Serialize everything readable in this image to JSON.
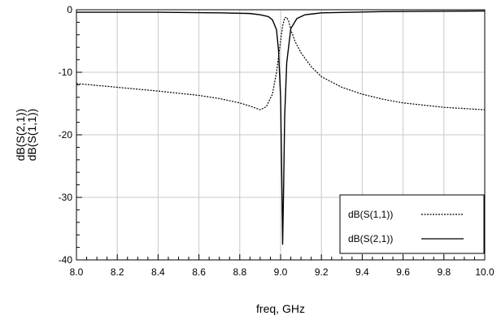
{
  "chart_data": {
    "type": "line",
    "title": "",
    "xlabel": "freq, GHz",
    "ylabel_lines": [
      "dB(S(2,1))",
      "dB(S(1,1))"
    ],
    "xlim": [
      8.0,
      10.0
    ],
    "ylim": [
      -40,
      0
    ],
    "xticks": [
      "8.0",
      "8.2",
      "8.4",
      "8.6",
      "8.8",
      "9.0",
      "9.2",
      "9.4",
      "9.6",
      "9.8",
      "10.0"
    ],
    "yticks": [
      "0",
      "-10",
      "-20",
      "-30",
      "-40"
    ],
    "grid": true,
    "legend_position": "bottom-right",
    "series": [
      {
        "name": "dB(S(1,1))",
        "style": "dotted",
        "color": "#000000",
        "x": [
          8.0,
          8.2,
          8.4,
          8.6,
          8.7,
          8.8,
          8.85,
          8.9,
          8.93,
          8.96,
          8.98,
          9.0,
          9.01,
          9.02,
          9.03,
          9.04,
          9.05,
          9.07,
          9.1,
          9.15,
          9.2,
          9.3,
          9.4,
          9.5,
          9.6,
          9.8,
          10.0
        ],
        "y": [
          -11.8,
          -12.4,
          -13.0,
          -13.7,
          -14.2,
          -14.9,
          -15.4,
          -16.0,
          -15.5,
          -13.5,
          -10.0,
          -5.0,
          -2.6,
          -1.3,
          -1.2,
          -1.9,
          -3.2,
          -5.0,
          -6.9,
          -9.1,
          -10.7,
          -12.4,
          -13.5,
          -14.3,
          -14.9,
          -15.6,
          -16.0
        ]
      },
      {
        "name": "dB(S(2,1))",
        "style": "solid",
        "color": "#000000",
        "x": [
          8.0,
          8.4,
          8.7,
          8.85,
          8.9,
          8.94,
          8.96,
          8.98,
          8.99,
          9.0,
          9.005,
          9.01,
          9.015,
          9.02,
          9.03,
          9.05,
          9.08,
          9.12,
          9.2,
          9.5,
          10.0
        ],
        "y": [
          -0.4,
          -0.4,
          -0.5,
          -0.6,
          -0.8,
          -1.1,
          -1.6,
          -3.2,
          -6.5,
          -14.0,
          -25.0,
          -37.5,
          -28.0,
          -17.0,
          -8.5,
          -3.0,
          -1.4,
          -0.8,
          -0.5,
          -0.3,
          -0.2
        ]
      }
    ]
  }
}
